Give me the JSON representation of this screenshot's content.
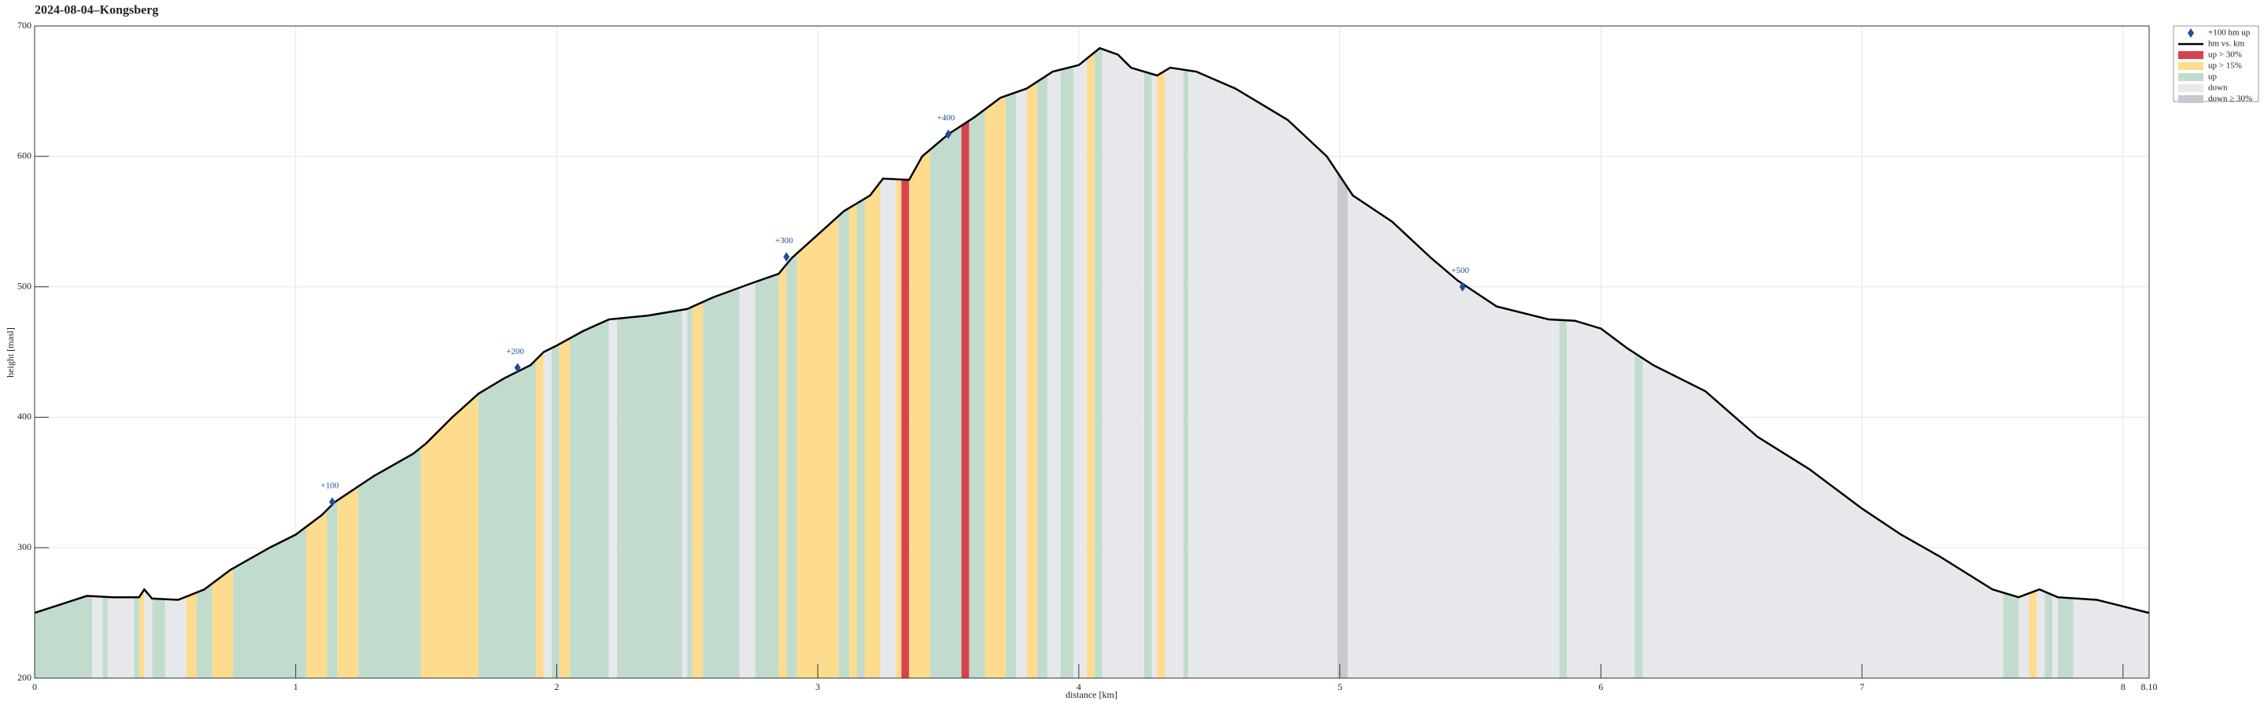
{
  "chart_data": {
    "type": "area",
    "title": "2024-08-04–Kongsberg",
    "xlabel": "distance [km]",
    "ylabel": "height [masl]",
    "xlim": [
      0,
      8.1
    ],
    "ylim": [
      200,
      700
    ],
    "xticks": [
      0,
      1,
      2,
      3,
      4,
      5,
      6,
      7,
      8,
      {
        "value": 8.1,
        "label": "8.10"
      }
    ],
    "yticks": [
      200,
      300,
      400,
      500,
      600,
      700
    ],
    "grid": true,
    "legend": "outside upper right",
    "profile": {
      "name": "hm vs. km",
      "color": "#000000",
      "x": [
        0,
        0.2,
        0.3,
        0.4,
        0.42,
        0.45,
        0.55,
        0.65,
        0.75,
        0.9,
        1.0,
        1.1,
        1.15,
        1.3,
        1.45,
        1.5,
        1.6,
        1.7,
        1.8,
        1.9,
        1.95,
        2.0,
        2.1,
        2.2,
        2.35,
        2.5,
        2.6,
        2.75,
        2.85,
        2.9,
        3.0,
        3.1,
        3.2,
        3.25,
        3.35,
        3.4,
        3.5,
        3.6,
        3.7,
        3.8,
        3.9,
        4.0,
        4.08,
        4.15,
        4.2,
        4.3,
        4.35,
        4.45,
        4.6,
        4.8,
        4.95,
        5.05,
        5.2,
        5.35,
        5.45,
        5.6,
        5.8,
        5.9,
        6.0,
        6.1,
        6.2,
        6.4,
        6.6,
        6.8,
        7.0,
        7.15,
        7.3,
        7.5,
        7.6,
        7.68,
        7.75,
        7.9,
        8.0,
        8.1
      ],
      "y": [
        250,
        263,
        262,
        262,
        268,
        261,
        260,
        268,
        283,
        300,
        310,
        325,
        335,
        355,
        372,
        380,
        400,
        418,
        430,
        440,
        450,
        455,
        466,
        475,
        478,
        483,
        492,
        503,
        510,
        522,
        540,
        558,
        570,
        583,
        582,
        600,
        617,
        630,
        645,
        652,
        665,
        670,
        683,
        678,
        668,
        662,
        668,
        665,
        652,
        628,
        600,
        570,
        550,
        522,
        505,
        485,
        475,
        474,
        468,
        453,
        440,
        420,
        385,
        360,
        330,
        310,
        293,
        268,
        262,
        268,
        262,
        260,
        255,
        250
      ]
    },
    "markers": {
      "name": "+100 hm up",
      "color": "#1f4e9c",
      "x": [
        1.14,
        1.85,
        2.88,
        3.5,
        5.47
      ],
      "y": [
        335,
        438,
        523,
        617,
        500
      ],
      "labels": [
        "+100",
        "+200",
        "+300",
        "+400",
        "+500"
      ]
    },
    "bands": [
      {
        "name": "up > 30%",
        "color": "#d9414e",
        "segments": [
          [
            3.32,
            3.35
          ],
          [
            3.55,
            3.58
          ]
        ]
      },
      {
        "name": "up > 15%",
        "color": "#fddc8e",
        "segments": [
          [
            0.4,
            0.42
          ],
          [
            0.58,
            0.62
          ],
          [
            0.68,
            0.76
          ],
          [
            1.04,
            1.12
          ],
          [
            1.16,
            1.24
          ],
          [
            1.48,
            1.7
          ],
          [
            1.92,
            1.95
          ],
          [
            2.01,
            2.05
          ],
          [
            2.52,
            2.56
          ],
          [
            2.85,
            2.88
          ],
          [
            2.92,
            3.08
          ],
          [
            3.12,
            3.15
          ],
          [
            3.18,
            3.24
          ],
          [
            3.3,
            3.32
          ],
          [
            3.35,
            3.43
          ],
          [
            3.64,
            3.72
          ],
          [
            3.8,
            3.84
          ],
          [
            4.03,
            4.06
          ],
          [
            4.3,
            4.33
          ],
          [
            7.64,
            7.67
          ]
        ]
      },
      {
        "name": "up",
        "color": "#c1dccd",
        "segments": [
          [
            0,
            0.22
          ],
          [
            0.26,
            0.28
          ],
          [
            0.38,
            0.4
          ],
          [
            0.45,
            0.5
          ],
          [
            0.62,
            0.68
          ],
          [
            0.76,
            1.04
          ],
          [
            1.12,
            1.16
          ],
          [
            1.24,
            1.48
          ],
          [
            1.7,
            1.92
          ],
          [
            1.98,
            2.01
          ],
          [
            2.05,
            2.2
          ],
          [
            2.23,
            2.48
          ],
          [
            2.5,
            2.52
          ],
          [
            2.56,
            2.7
          ],
          [
            2.76,
            2.85
          ],
          [
            2.88,
            2.92
          ],
          [
            3.08,
            3.12
          ],
          [
            3.15,
            3.18
          ],
          [
            3.43,
            3.55
          ],
          [
            3.58,
            3.64
          ],
          [
            3.72,
            3.76
          ],
          [
            3.84,
            3.88
          ],
          [
            3.93,
            3.98
          ],
          [
            4.06,
            4.09
          ],
          [
            4.25,
            4.28
          ],
          [
            4.4,
            4.42
          ],
          [
            5.84,
            5.87
          ],
          [
            6.13,
            6.16
          ],
          [
            7.54,
            7.6
          ],
          [
            7.7,
            7.73
          ],
          [
            7.75,
            7.81
          ]
        ]
      },
      {
        "name": "down",
        "color": "#e7e8eb",
        "segments": [
          [
            0.22,
            0.26
          ],
          [
            0.28,
            0.38
          ],
          [
            0.42,
            0.45
          ],
          [
            0.5,
            0.58
          ],
          [
            1.95,
            1.98
          ],
          [
            2.2,
            2.23
          ],
          [
            2.48,
            2.5
          ],
          [
            2.7,
            2.76
          ],
          [
            3.24,
            3.3
          ],
          [
            3.76,
            3.8
          ],
          [
            3.88,
            3.93
          ],
          [
            3.98,
            4.03
          ],
          [
            4.09,
            4.25
          ],
          [
            4.28,
            4.3
          ],
          [
            4.33,
            4.4
          ],
          [
            4.42,
            4.99
          ],
          [
            5.03,
            5.84
          ],
          [
            5.87,
            6.13
          ],
          [
            6.16,
            7.54
          ],
          [
            7.6,
            7.64
          ],
          [
            7.67,
            7.7
          ],
          [
            7.73,
            7.75
          ],
          [
            7.81,
            8.1
          ]
        ]
      },
      {
        "name": "down ≥ 30%",
        "color": "#c7c9d0",
        "segments": [
          [
            4.99,
            5.03
          ]
        ]
      }
    ]
  }
}
